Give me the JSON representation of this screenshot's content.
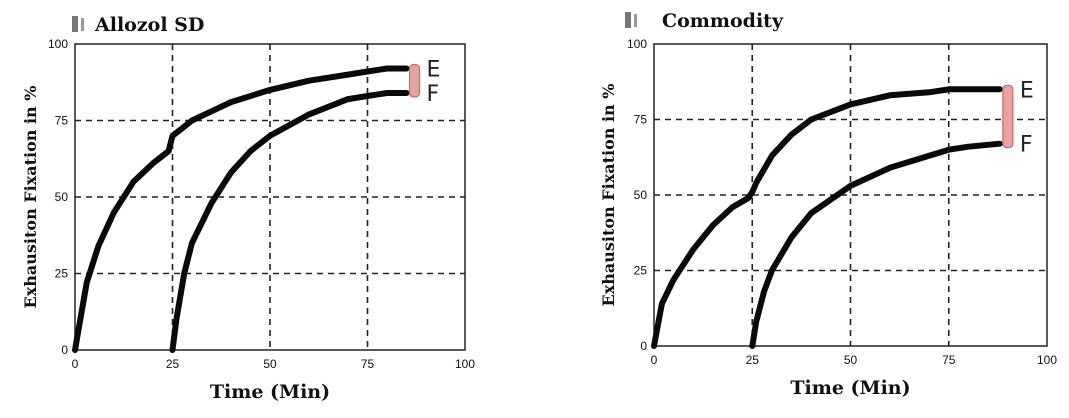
{
  "chart_data": [
    {
      "type": "line",
      "title": "Allozol SD",
      "xlabel": "Time (Min)",
      "ylabel": "Exhausiton Fixation in %",
      "xlim": [
        0,
        100
      ],
      "ylim": [
        0,
        100
      ],
      "xticks": [
        "0",
        "25",
        "50",
        "75",
        "100"
      ],
      "yticks": [
        "0",
        "25",
        "50",
        "75",
        "100"
      ],
      "grid": "dashed",
      "series": [
        {
          "name": "E",
          "x": [
            0,
            3,
            6,
            10,
            15,
            20,
            24,
            25,
            27,
            30,
            35,
            40,
            50,
            60,
            70,
            75,
            80,
            85
          ],
          "y": [
            0,
            22,
            34,
            45,
            55,
            61,
            65,
            70,
            72,
            75,
            78,
            81,
            85,
            88,
            90,
            91,
            92,
            92
          ]
        },
        {
          "name": "F",
          "x": [
            25,
            26,
            28,
            30,
            35,
            40,
            45,
            50,
            60,
            70,
            75,
            80,
            85
          ],
          "y": [
            0,
            10,
            25,
            35,
            48,
            58,
            65,
            70,
            77,
            82,
            83,
            84,
            84
          ]
        }
      ],
      "end_labels": [
        "E",
        "F"
      ]
    },
    {
      "type": "line",
      "title": "Commodity",
      "xlabel": "Time (Min)",
      "ylabel": "Exhausiton Fixation in %",
      "xlim": [
        0,
        100
      ],
      "ylim": [
        0,
        100
      ],
      "xticks": [
        "0",
        "25",
        "50",
        "75",
        "100"
      ],
      "yticks": [
        "0",
        "25",
        "50",
        "75",
        "100"
      ],
      "grid": "dashed",
      "series": [
        {
          "name": "E",
          "x": [
            0,
            2,
            5,
            10,
            15,
            20,
            24,
            25,
            26,
            30,
            35,
            40,
            50,
            60,
            70,
            75,
            80,
            88
          ],
          "y": [
            0,
            14,
            22,
            32,
            40,
            46,
            49,
            51,
            54,
            63,
            70,
            75,
            80,
            83,
            84,
            85,
            85,
            85
          ]
        },
        {
          "name": "F",
          "x": [
            25,
            26,
            28,
            30,
            35,
            40,
            50,
            60,
            70,
            75,
            80,
            88
          ],
          "y": [
            0,
            8,
            18,
            25,
            36,
            44,
            53,
            59,
            63,
            65,
            66,
            67
          ]
        }
      ],
      "end_labels": [
        "E",
        "F"
      ]
    }
  ]
}
